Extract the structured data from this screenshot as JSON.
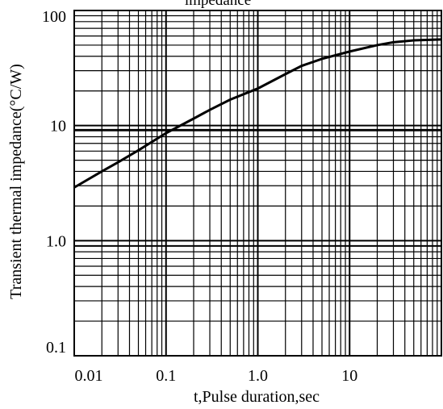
{
  "chart_data": {
    "type": "line",
    "title": "impedance",
    "xlabel": "t,Pulse duration,sec",
    "ylabel": "Transient thermal impedance(°C/W)",
    "x_scale": "log",
    "y_scale": "log",
    "xlim": [
      0.01,
      100
    ],
    "ylim": [
      0.1,
      100
    ],
    "x_tick_labels": [
      "0.01",
      "0.1",
      "1.0",
      "10"
    ],
    "y_tick_labels": [
      "100",
      "10",
      "1.0",
      "0.1"
    ],
    "grid": true,
    "series": [
      {
        "x": [
          0.01,
          0.02,
          0.03,
          0.05,
          0.1,
          0.2,
          0.3,
          0.5,
          1,
          2,
          3,
          5,
          10,
          20,
          30,
          50,
          100
        ],
        "y": [
          2.9,
          4.0,
          4.8,
          6.1,
          8.6,
          11.5,
          13.7,
          16.8,
          21,
          28,
          33,
          38,
          44,
          50,
          53,
          55,
          56
        ]
      }
    ]
  }
}
